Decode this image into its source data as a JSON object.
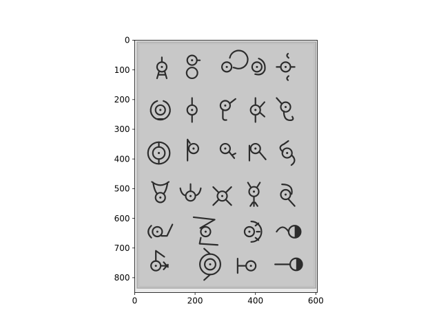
{
  "chart_data": {
    "type": "image",
    "colormap": "grayscale",
    "image_extent": {
      "x": [
        0,
        605
      ],
      "y": [
        0,
        850
      ]
    },
    "x_axis": {
      "lim": [
        0,
        605
      ],
      "ticks": [
        0,
        200,
        400,
        600
      ],
      "tick_labels": [
        "0",
        "200",
        "400",
        "600"
      ]
    },
    "y_axis": {
      "lim": [
        850,
        0
      ],
      "inverted": true,
      "ticks": [
        0,
        100,
        200,
        300,
        400,
        500,
        600,
        700,
        800
      ],
      "tick_labels": [
        "0",
        "100",
        "200",
        "300",
        "400",
        "500",
        "600",
        "700",
        "800"
      ]
    },
    "grid": false,
    "legend": "none",
    "paper": {
      "x": [
        8,
        600
      ],
      "y": [
        6,
        835
      ]
    },
    "glyphs": [
      {
        "id": "A",
        "x": 90,
        "y": 90
      },
      {
        "id": "B",
        "x": 190,
        "y": 100
      },
      {
        "id": "C",
        "x": 305,
        "y": 90
      },
      {
        "id": "D",
        "x": 405,
        "y": 90
      },
      {
        "id": "E",
        "x": 500,
        "y": 90
      },
      {
        "id": "F",
        "x": 85,
        "y": 235
      },
      {
        "id": "G",
        "x": 190,
        "y": 235
      },
      {
        "id": "H",
        "x": 300,
        "y": 220
      },
      {
        "id": "I",
        "x": 400,
        "y": 235
      },
      {
        "id": "J",
        "x": 500,
        "y": 225
      },
      {
        "id": "K",
        "x": 80,
        "y": 380
      },
      {
        "id": "L",
        "x": 195,
        "y": 365
      },
      {
        "id": "M",
        "x": 300,
        "y": 365
      },
      {
        "id": "N",
        "x": 400,
        "y": 365
      },
      {
        "id": "O",
        "x": 505,
        "y": 380
      },
      {
        "id": "P",
        "x": 85,
        "y": 530
      },
      {
        "id": "Q",
        "x": 185,
        "y": 525
      },
      {
        "id": "R",
        "x": 290,
        "y": 525
      },
      {
        "id": "S",
        "x": 395,
        "y": 510
      },
      {
        "id": "T",
        "x": 500,
        "y": 520
      },
      {
        "id": "U",
        "x": 75,
        "y": 645
      },
      {
        "id": "V",
        "x": 235,
        "y": 645
      },
      {
        "id": "W",
        "x": 380,
        "y": 645
      },
      {
        "id": "X",
        "x": 530,
        "y": 645
      },
      {
        "id": "Y",
        "x": 70,
        "y": 760
      },
      {
        "id": "Z",
        "x": 250,
        "y": 755
      },
      {
        "id": "QM",
        "x": 385,
        "y": 760
      },
      {
        "id": "EX",
        "x": 535,
        "y": 755
      }
    ],
    "colors": {
      "paper": "#c8c8c8",
      "paper_edge": "#a8a8a8",
      "ink": "#2c2c2c",
      "outside": "#ececec"
    }
  }
}
